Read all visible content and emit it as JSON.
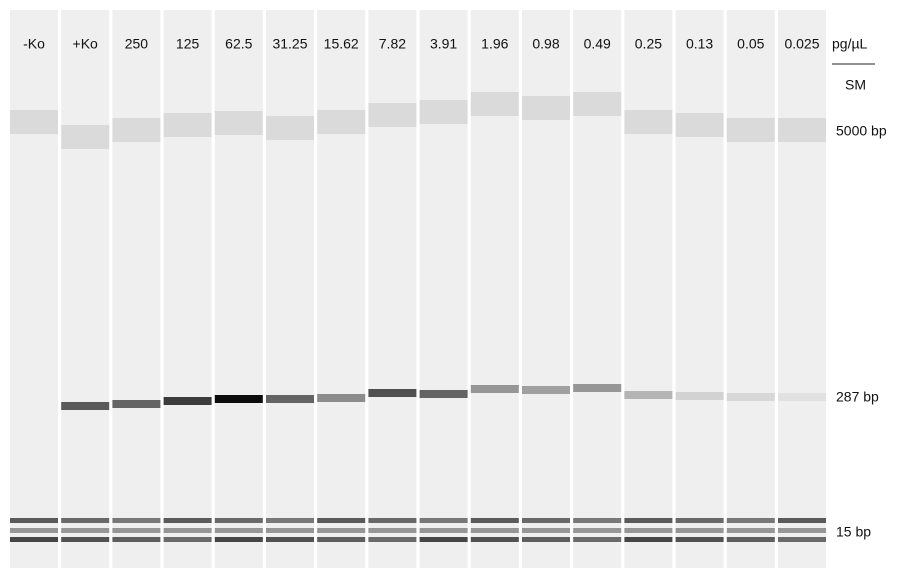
{
  "lanes": [
    "-Ko",
    "+Ko",
    "250",
    "125",
    "62.5",
    "31.25",
    "15.62",
    "7.82",
    "3.91",
    "1.96",
    "0.98",
    "0.49",
    "0.25",
    "0.13",
    "0.05",
    "0.025"
  ],
  "unit": "pg/µL",
  "marker_lane": "SM",
  "markers": [
    "5000 bp",
    "287 bp",
    "15 bp"
  ]
}
